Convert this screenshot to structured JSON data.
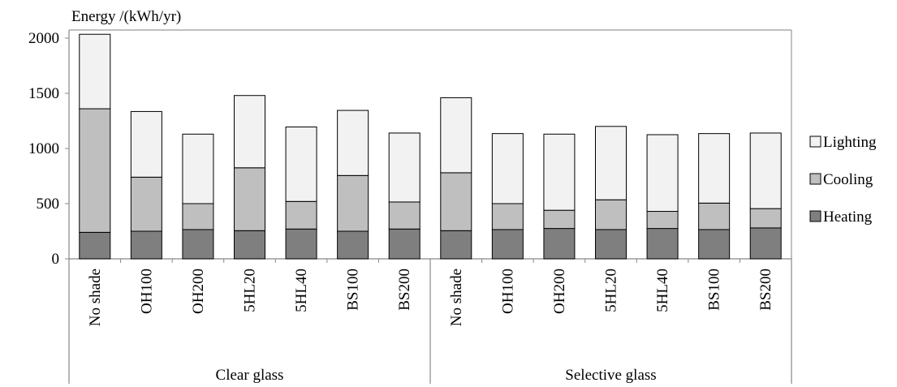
{
  "chart_data": {
    "type": "bar",
    "stacked": true,
    "ylabel": "Energy /(kWh/yr)",
    "ylim": [
      0,
      2000
    ],
    "yticks": [
      0,
      500,
      1000,
      1500,
      2000
    ],
    "grid": false,
    "legend_position": "right",
    "groups": [
      {
        "label": "Clear glass",
        "categories": [
          "No shade",
          "OH100",
          "OH200",
          "5HL20",
          "5HL40",
          "BS100",
          "BS200"
        ]
      },
      {
        "label": "Selective glass",
        "categories": [
          "No shade",
          "OH100",
          "OH200",
          "5HL20",
          "5HL40",
          "BS100",
          "BS200"
        ]
      }
    ],
    "categories": [
      "No shade",
      "OH100",
      "OH200",
      "5HL20",
      "5HL40",
      "BS100",
      "BS200",
      "No shade",
      "OH100",
      "OH200",
      "5HL20",
      "5HL40",
      "BS100",
      "BS200"
    ],
    "series": [
      {
        "name": "Heating",
        "color": "#7f7f7f",
        "values": [
          240,
          250,
          265,
          255,
          270,
          250,
          270,
          255,
          265,
          275,
          265,
          275,
          265,
          280
        ]
      },
      {
        "name": "Cooling",
        "color": "#bfbfbf",
        "values": [
          1120,
          490,
          235,
          570,
          250,
          505,
          245,
          525,
          235,
          165,
          270,
          155,
          240,
          175
        ]
      },
      {
        "name": "Lighting",
        "color": "#f2f2f2",
        "values": [
          675,
          595,
          630,
          655,
          675,
          590,
          625,
          680,
          635,
          690,
          665,
          695,
          630,
          685
        ]
      }
    ]
  }
}
